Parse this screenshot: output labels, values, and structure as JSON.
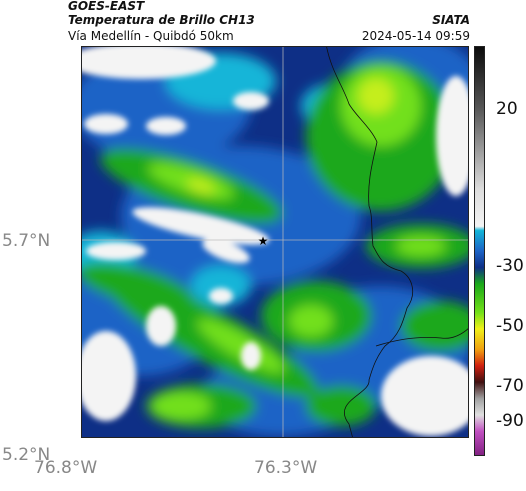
{
  "header": {
    "line1": "GOES-EAST",
    "line2": "Temperatura de Brillo CH13",
    "line3": "Vía Medellín - Quibdó 50km",
    "brand": "SIATA",
    "datetime": "2024-05-14 09:59"
  },
  "axes": {
    "x_ticks": [
      "76.8°W",
      "76.3°W"
    ],
    "y_ticks": [
      "5.7°N",
      "5.2°N"
    ]
  },
  "colorbar": {
    "labels": [
      "20",
      "-30",
      "-50",
      "-70",
      "-90"
    ]
  },
  "marker": {
    "name": "star",
    "symbol": "★"
  },
  "colors": {
    "cold_white": "#f4f4f4",
    "dark_blue": "#0e2f86",
    "blue": "#1c63c6",
    "cyan": "#12b5d8",
    "green": "#1aa81a",
    "lime": "#72e01a",
    "yellow_green": "#c5ee1a"
  }
}
